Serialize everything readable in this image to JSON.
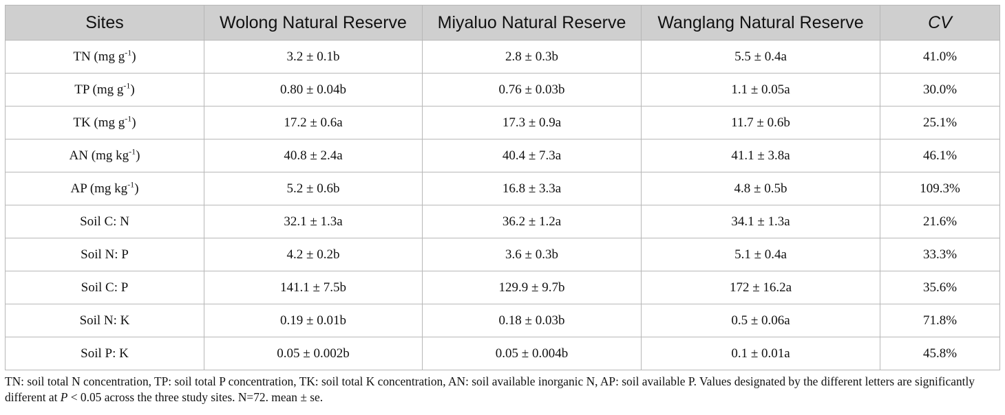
{
  "table": {
    "headers": {
      "sites": "Sites",
      "wolong": "Wolong Natural Reserve",
      "miyaluo": "Miyaluo Natural Reserve",
      "wanglang": "Wanglang Natural Reserve",
      "cv": "CV"
    },
    "rows": [
      {
        "label": "TN (mg g",
        "sup": "-1",
        "close": ")",
        "wolong": "3.2 ± 0.1b",
        "miyaluo": "2.8 ± 0.3b",
        "wanglang": "5.5 ± 0.4a",
        "cv": "41.0%"
      },
      {
        "label": "TP (mg g",
        "sup": "-1",
        "close": ")",
        "wolong": "0.80 ± 0.04b",
        "miyaluo": "0.76 ± 0.03b",
        "wanglang": "1.1 ± 0.05a",
        "cv": "30.0%"
      },
      {
        "label": "TK (mg g",
        "sup": "-1",
        "close": ")",
        "wolong": "17.2 ± 0.6a",
        "miyaluo": "17.3 ± 0.9a",
        "wanglang": "11.7 ± 0.6b",
        "cv": "25.1%"
      },
      {
        "label": "AN (mg kg",
        "sup": "-1",
        "close": ")",
        "wolong": "40.8 ± 2.4a",
        "miyaluo": "40.4 ± 7.3a",
        "wanglang": "41.1 ± 3.8a",
        "cv": "46.1%"
      },
      {
        "label": "AP (mg kg",
        "sup": "-1",
        "close": ")",
        "wolong": "5.2 ± 0.6b",
        "miyaluo": "16.8 ± 3.3a",
        "wanglang": "4.8 ± 0.5b",
        "cv": "109.3%"
      },
      {
        "label": "Soil C: N",
        "sup": "",
        "close": "",
        "wolong": "32.1 ± 1.3a",
        "miyaluo": "36.2 ± 1.2a",
        "wanglang": "34.1 ± 1.3a",
        "cv": "21.6%"
      },
      {
        "label": "Soil N: P",
        "sup": "",
        "close": "",
        "wolong": "4.2 ± 0.2b",
        "miyaluo": "3.6 ± 0.3b",
        "wanglang": "5.1 ± 0.4a",
        "cv": "33.3%"
      },
      {
        "label": "Soil C: P",
        "sup": "",
        "close": "",
        "wolong": "141.1 ± 7.5b",
        "miyaluo": "129.9 ± 9.7b",
        "wanglang": "172 ± 16.2a",
        "cv": "35.6%"
      },
      {
        "label": "Soil N: K",
        "sup": "",
        "close": "",
        "wolong": "0.19 ± 0.01b",
        "miyaluo": "0.18 ± 0.03b",
        "wanglang": "0.5 ± 0.06a",
        "cv": "71.8%"
      },
      {
        "label": "Soil P: K",
        "sup": "",
        "close": "",
        "wolong": "0.05 ± 0.002b",
        "miyaluo": "0.05 ± 0.004b",
        "wanglang": "0.1 ± 0.01a",
        "cv": "45.8%"
      }
    ]
  },
  "footnote": {
    "part1": "TN: soil total N concentration, TP: soil total P concentration, TK: soil total K concentration, AN: soil available inorganic N, AP: soil available P. Values designated by the different letters are significantly different at ",
    "p_symbol": "P",
    "part2": " < 0.05 across the three study sites. N=72. mean ± se."
  }
}
